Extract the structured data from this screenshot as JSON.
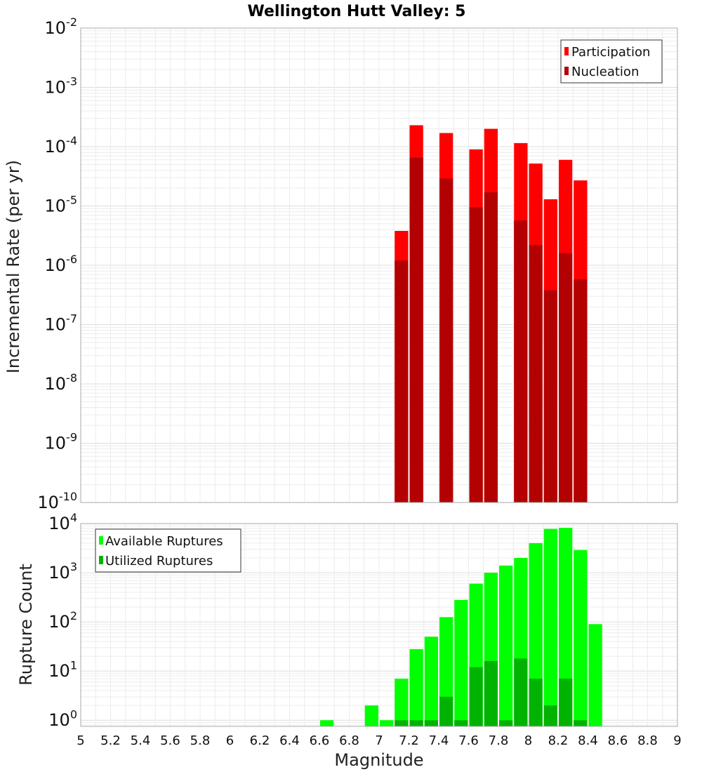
{
  "chart_data": [
    {
      "type": "bar",
      "title": "Wellington Hutt Valley: 5",
      "ylabel": "Incremental Rate (per yr)",
      "xlabel": "",
      "yscale": "log",
      "ylim": [
        1e-10,
        0.01
      ],
      "xlim": [
        5,
        9
      ],
      "y_tick_exponents": [
        "-10",
        "-9",
        "-8",
        "-7",
        "-6",
        "-5",
        "-4",
        "-3",
        "-2"
      ],
      "y_tick_base": "10",
      "grid": true,
      "legend_position": "top-right",
      "x": [
        7.15,
        7.25,
        7.45,
        7.65,
        7.75,
        7.95,
        8.05,
        8.15,
        8.25,
        8.35
      ],
      "series": [
        {
          "name": "Participation",
          "color": "#ff0000",
          "values": [
            3.8e-06,
            0.00023,
            0.00017,
            9e-05,
            0.0002,
            0.000115,
            5.2e-05,
            1.3e-05,
            6e-05,
            2.7e-05
          ]
        },
        {
          "name": "Nucleation",
          "color": "#b30000",
          "values": [
            1.2e-06,
            6.5e-05,
            2.9e-05,
            9.5e-06,
            1.7e-05,
            5.7e-06,
            2.2e-06,
            3.8e-07,
            1.6e-06,
            5.8e-07
          ]
        }
      ]
    },
    {
      "type": "bar",
      "title": "",
      "ylabel": "Rupture Count",
      "xlabel": "Magnitude",
      "yscale": "log",
      "ylim": [
        0.75,
        10000
      ],
      "xlim": [
        5,
        9
      ],
      "y_tick_exponents": [
        "0",
        "1",
        "2",
        "3",
        "4"
      ],
      "y_tick_base": "10",
      "x_ticks": [
        "5",
        "5.2",
        "5.4",
        "5.6",
        "5.8",
        "6",
        "6.2",
        "6.4",
        "6.6",
        "6.8",
        "7",
        "7.2",
        "7.4",
        "7.6",
        "7.8",
        "8",
        "8.2",
        "8.4",
        "8.6",
        "8.8",
        "9"
      ],
      "grid": true,
      "legend_position": "top-left",
      "x": [
        6.65,
        6.95,
        7.05,
        7.15,
        7.25,
        7.35,
        7.45,
        7.55,
        7.65,
        7.75,
        7.85,
        7.95,
        8.05,
        8.15,
        8.25,
        8.35,
        8.45
      ],
      "series": [
        {
          "name": "Available Ruptures",
          "color": "#00ff00",
          "values": [
            1,
            2,
            1,
            7,
            28,
            50,
            125,
            280,
            600,
            1000,
            1400,
            2000,
            4000,
            7800,
            8200,
            2900,
            90
          ]
        },
        {
          "name": "Utilized Ruptures",
          "color": "#00b300",
          "values": [
            null,
            null,
            null,
            1,
            1,
            1,
            3,
            1,
            12,
            16,
            1,
            18,
            7,
            2,
            7,
            1,
            null
          ]
        }
      ]
    }
  ]
}
